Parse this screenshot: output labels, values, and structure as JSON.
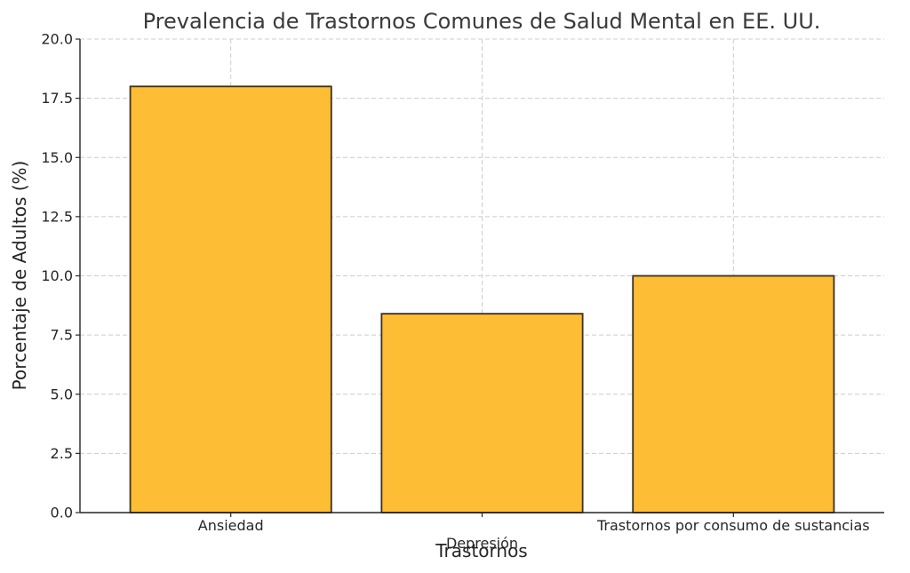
{
  "chart_data": {
    "type": "bar",
    "title": "Prevalencia de Trastornos Comunes de Salud Mental en EE. UU.",
    "xlabel": "Trastornos",
    "ylabel": "Porcentaje de Adultos (%)",
    "categories": [
      "Ansiedad",
      "Depresión",
      "Trastornos por consumo de sustancias"
    ],
    "values": [
      18.0,
      8.4,
      10.0
    ],
    "ylim": [
      0,
      20
    ],
    "yticks": [
      "0.0",
      "2.5",
      "5.0",
      "7.5",
      "10.0",
      "12.5",
      "15.0",
      "17.5",
      "20.0"
    ],
    "grid": true,
    "bar_color": "#fdbd34",
    "bar_edge_color": "#3b3121"
  }
}
